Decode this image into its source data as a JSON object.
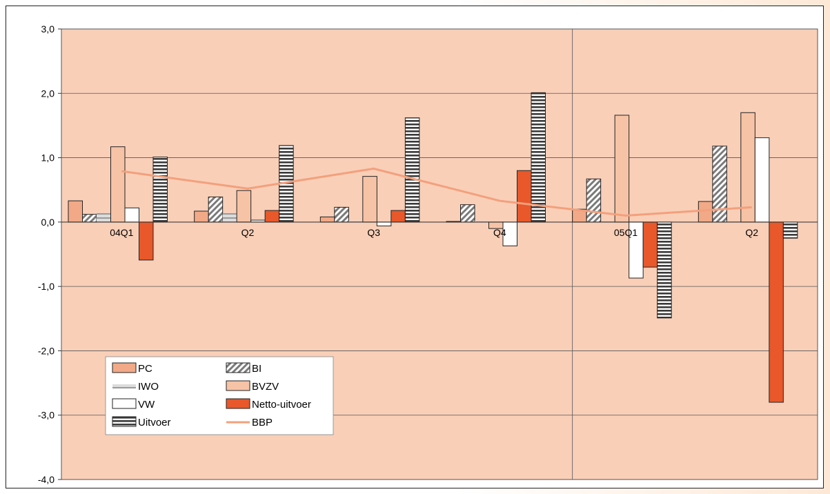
{
  "chart_data": {
    "type": "bar",
    "categories": [
      "04Q1",
      "Q2",
      "Q3",
      "Q4",
      "05Q1",
      "Q2"
    ],
    "ylim": [
      -4,
      3
    ],
    "yticks": [
      "-4,0",
      "-3,0",
      "-2,0",
      "-1,0",
      "0,0",
      "1,0",
      "2,0",
      "3,0"
    ],
    "ytick_values": [
      -4,
      -3,
      -2,
      -1,
      0,
      1,
      2,
      3
    ],
    "grid": true,
    "legend_position": "bottom-left",
    "colors": {
      "plot_bg": "#f9cfb8",
      "pc": "#f2a987",
      "iwo": "#b8b8b8",
      "bvzv": "#f7c3a6",
      "vw": "#ffffff",
      "netto": "#e8582a",
      "bbp": "#f3a07c"
    },
    "series": [
      {
        "name": "PC",
        "kind": "bar",
        "values": [
          0.33,
          0.17,
          0.08,
          0.01,
          0.2,
          0.32
        ]
      },
      {
        "name": "BI",
        "kind": "bar",
        "values": [
          0.12,
          0.39,
          0.23,
          0.27,
          0.67,
          1.18
        ]
      },
      {
        "name": "IWO",
        "kind": "bar",
        "values": [
          0.14,
          0.14,
          0.02,
          0.02,
          0.01,
          0.01
        ]
      },
      {
        "name": "BVZV",
        "kind": "bar",
        "values": [
          1.17,
          0.49,
          0.71,
          -0.1,
          1.66,
          1.7
        ]
      },
      {
        "name": "VW",
        "kind": "bar",
        "values": [
          0.22,
          0.03,
          -0.06,
          -0.37,
          -0.87,
          1.31
        ]
      },
      {
        "name": "Netto-uitvoer",
        "kind": "bar",
        "values": [
          -0.59,
          0.18,
          0.18,
          0.8,
          -0.7,
          -2.8
        ]
      },
      {
        "name": "Uitvoer",
        "kind": "bar",
        "values": [
          1.01,
          1.19,
          1.62,
          2.01,
          -1.49,
          -0.25
        ]
      },
      {
        "name": "BBP",
        "kind": "line",
        "values": [
          0.79,
          0.52,
          0.83,
          0.33,
          0.1,
          0.23
        ]
      }
    ],
    "legend": [
      "PC",
      "BI",
      "IWO",
      "BVZV",
      "VW",
      "Netto-uitvoer",
      "Uitvoer",
      "BBP"
    ]
  }
}
